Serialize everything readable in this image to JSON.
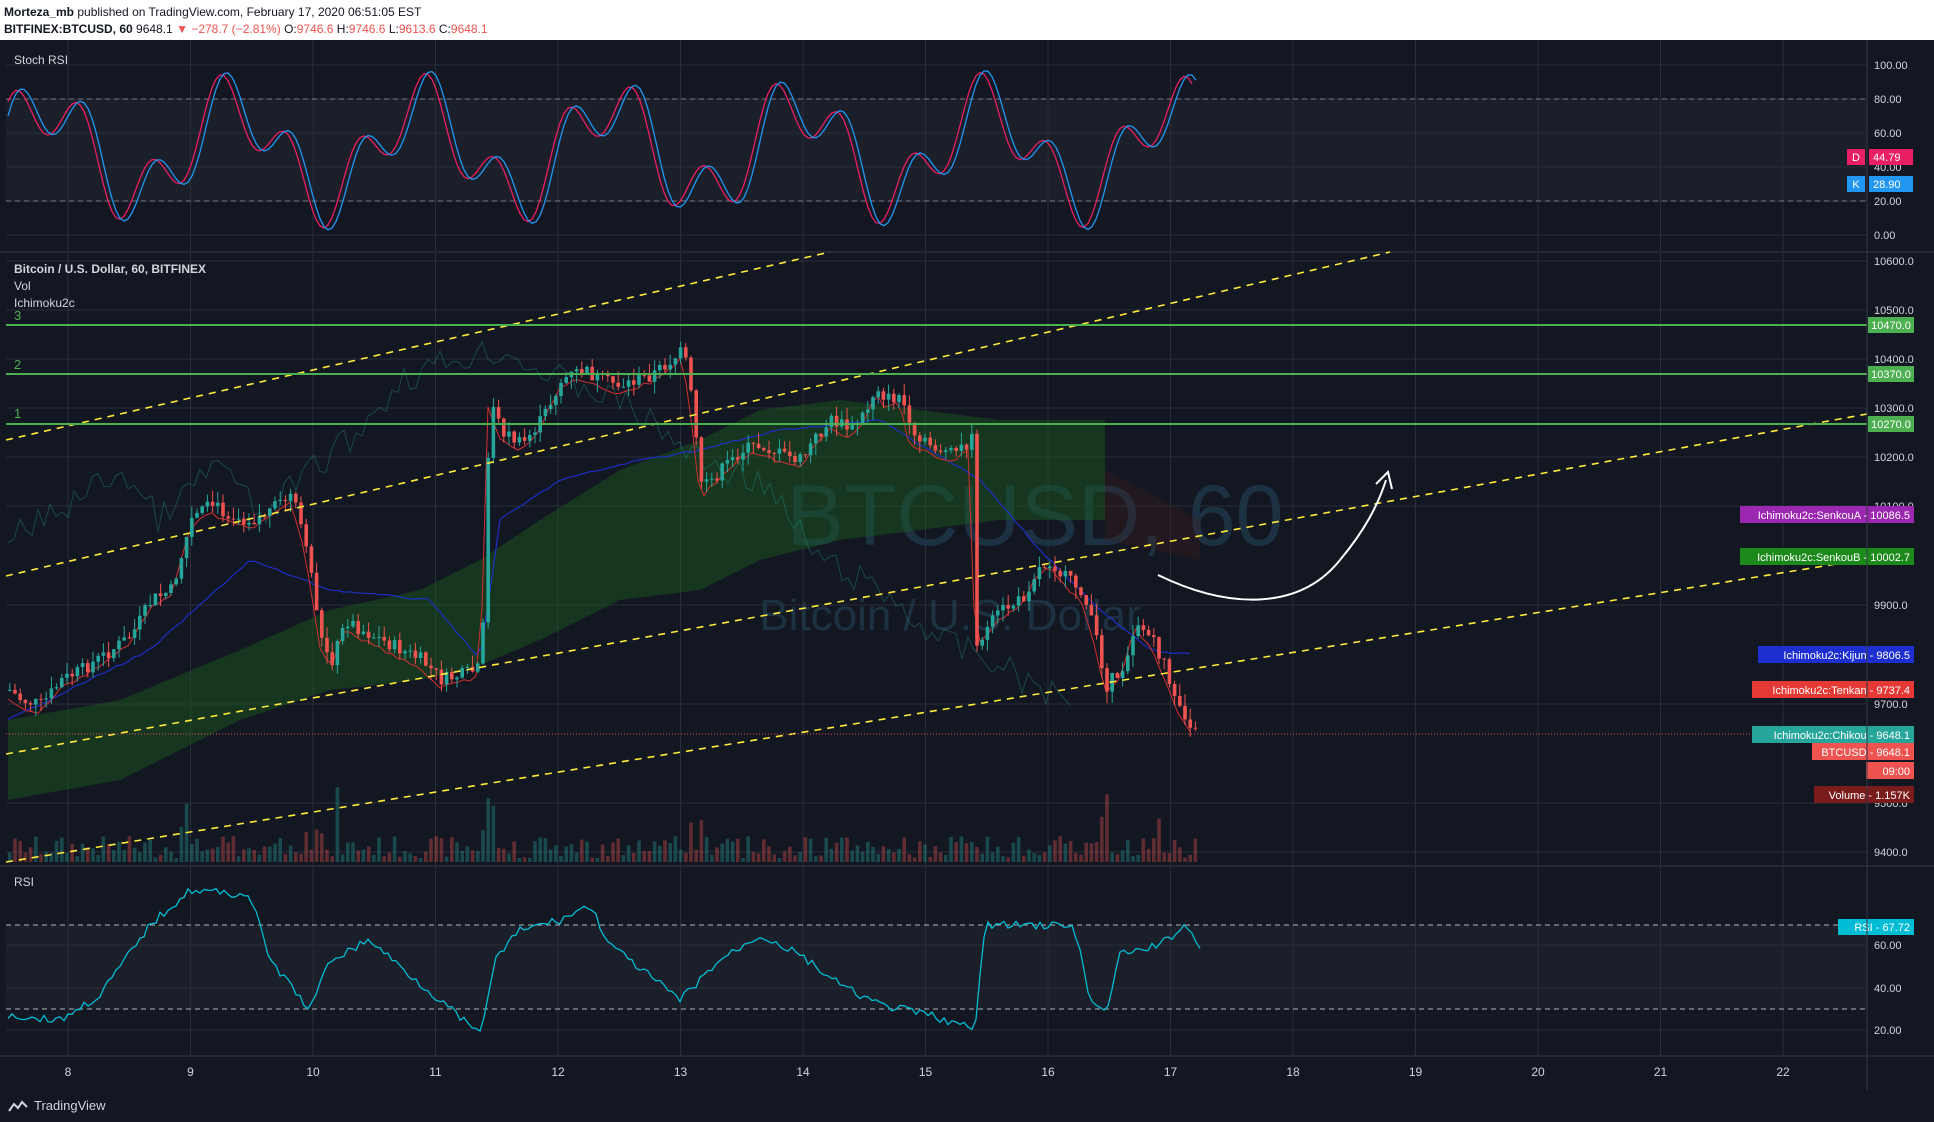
{
  "header": {
    "publisher": "Morteza_mb",
    "published_text": "published on TradingView.com, February 17, 2020 06:51:05 EST",
    "symbol": "BITFINEX:BTCUSD, 60",
    "last": "9648.1",
    "change_arrow": "▼",
    "change": "−278.7 (−2.81%)",
    "o_label": "O:",
    "o": "9746.6",
    "h_label": "H:",
    "h": "9746.6",
    "l_label": "L:",
    "l": "9613.6",
    "c_label": "C:",
    "c": "9648.1"
  },
  "stoch_pane": {
    "title": "Stoch RSI",
    "ticks": [
      "100.00",
      "80.00",
      "60.00",
      "40.00",
      "20.00",
      "0.00"
    ],
    "d_label": "D",
    "d_value": "44.79",
    "k_label": "K",
    "k_value": "28.90"
  },
  "main_pane": {
    "title": "Bitcoin / U.S. Dollar, 60, BITFINEX",
    "vol_label": "Vol",
    "ichimoku_label": "Ichimoku2c",
    "watermark_big": "BTCUSD, 60",
    "watermark_small": "Bitcoin / U.S. Dollar",
    "ticks": [
      "10600.0",
      "10500.0",
      "10400.0",
      "10300.0",
      "10200.0",
      "10100.0",
      "9900.0",
      "9700.0",
      "9500.0",
      "9400.0"
    ],
    "levels": [
      {
        "num": "1",
        "price": "10270.0"
      },
      {
        "num": "2",
        "price": "10370.0"
      },
      {
        "num": "3",
        "price": "10470.0"
      }
    ],
    "badges": {
      "senkou_a": "Ichimoku2c:SenkouA - 10086.5",
      "senkou_b": "Ichimoku2c:SenkouB - 10002.7",
      "kijun": "Ichimoku2c:Kijun - 9806.5",
      "tenkan": "Ichimoku2c:Tenkan - 9737.4",
      "chikou": "Ichimoku2c:Chikou - 9648.1",
      "price": "BTCUSD - 9648.1",
      "countdown": "09:00",
      "volume": "Volume - 1.157K"
    }
  },
  "rsi_pane": {
    "title": "RSI",
    "ticks": [
      "60.00",
      "40.00",
      "20.00"
    ],
    "badge": "RSI - 67.72"
  },
  "time_axis": [
    "8",
    "9",
    "10",
    "11",
    "12",
    "13",
    "14",
    "15",
    "16",
    "17",
    "18",
    "19",
    "20",
    "21",
    "22"
  ],
  "colors": {
    "bg": "#131722",
    "up": "#26a69a",
    "down": "#ef5350",
    "green_level": "#4caf50",
    "channel": "#ffeb3b",
    "stoch_k": "#2196f3",
    "stoch_d": "#e91e63",
    "rsi": "#00bcd4"
  },
  "footer": {
    "brand": "TradingView"
  }
}
